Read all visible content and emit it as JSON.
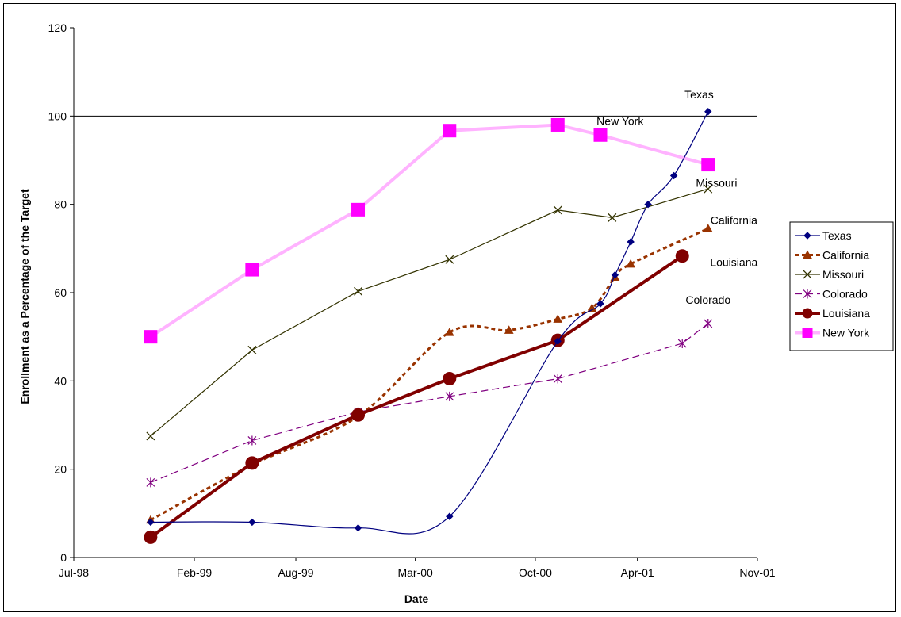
{
  "chart_data": {
    "type": "line",
    "title": "",
    "xlabel": "Date",
    "ylabel": "Enrollment as a Percentage of the Target",
    "xlim": [
      "1998-07-01",
      "2001-11-01"
    ],
    "ylim": [
      0,
      120
    ],
    "x_ticks": [
      {
        "date": "1998-07-01",
        "label": "Jul-98"
      },
      {
        "date": "1999-02-01",
        "label": "Feb-99"
      },
      {
        "date": "1999-08-01",
        "label": "Aug-99"
      },
      {
        "date": "2000-03-01",
        "label": "Mar-00"
      },
      {
        "date": "2000-10-01",
        "label": "Oct-00"
      },
      {
        "date": "2001-04-01",
        "label": "Apr-01"
      },
      {
        "date": "2001-11-01",
        "label": "Nov-01"
      }
    ],
    "y_ticks": [
      0,
      20,
      40,
      60,
      80,
      100,
      120
    ],
    "reference_line": {
      "y": 100,
      "color": "#000000"
    },
    "grid": false,
    "legend_position": "right",
    "series": [
      {
        "name": "Texas",
        "color": "#000080",
        "marker": "diamond",
        "line": "solid-thin-smooth",
        "points": [
          {
            "x": "1998-11-15",
            "y": 8
          },
          {
            "x": "1999-05-15",
            "y": 8
          },
          {
            "x": "1999-11-20",
            "y": 6.7
          },
          {
            "x": "2000-05-01",
            "y": 9.3
          },
          {
            "x": "2000-11-10",
            "y": 49
          },
          {
            "x": "2001-01-25",
            "y": 57.5
          },
          {
            "x": "2001-02-20",
            "y": 64
          },
          {
            "x": "2001-03-20",
            "y": 71.5
          },
          {
            "x": "2001-04-20",
            "y": 80
          },
          {
            "x": "2001-06-05",
            "y": 86.5
          },
          {
            "x": "2001-08-05",
            "y": 101
          }
        ]
      },
      {
        "name": "California",
        "color": "#993300",
        "marker": "triangle",
        "line": "dashed-smooth",
        "points": [
          {
            "x": "1998-11-15",
            "y": 8.5
          },
          {
            "x": "1999-05-15",
            "y": 21
          },
          {
            "x": "1999-11-20",
            "y": 32
          },
          {
            "x": "2000-05-01",
            "y": 51
          },
          {
            "x": "2000-08-15",
            "y": 51.5
          },
          {
            "x": "2000-11-10",
            "y": 54
          },
          {
            "x": "2001-01-10",
            "y": 56.5
          },
          {
            "x": "2001-02-20",
            "y": 63.5
          },
          {
            "x": "2001-03-20",
            "y": 66.5
          },
          {
            "x": "2001-08-05",
            "y": 74.5
          }
        ]
      },
      {
        "name": "Missouri",
        "color": "#333300",
        "marker": "x",
        "line": "solid-thin",
        "points": [
          {
            "x": "1998-11-15",
            "y": 27.5
          },
          {
            "x": "1999-05-15",
            "y": 47
          },
          {
            "x": "1999-11-20",
            "y": 60.3
          },
          {
            "x": "2000-05-01",
            "y": 67.5
          },
          {
            "x": "2000-11-10",
            "y": 78.7
          },
          {
            "x": "2001-02-15",
            "y": 77
          },
          {
            "x": "2001-08-05",
            "y": 83.5
          }
        ]
      },
      {
        "name": "Colorado",
        "color": "#800080",
        "marker": "star",
        "line": "dashed-long",
        "points": [
          {
            "x": "1998-11-15",
            "y": 17
          },
          {
            "x": "1999-05-15",
            "y": 26.5
          },
          {
            "x": "1999-11-20",
            "y": 33
          },
          {
            "x": "2000-05-01",
            "y": 36.5
          },
          {
            "x": "2000-11-10",
            "y": 40.5
          },
          {
            "x": "2001-06-20",
            "y": 48.5
          },
          {
            "x": "2001-08-05",
            "y": 53
          }
        ]
      },
      {
        "name": "Louisiana",
        "color": "#800000",
        "marker": "circle",
        "line": "solid-thick",
        "points": [
          {
            "x": "1998-11-15",
            "y": 4.6
          },
          {
            "x": "1999-05-15",
            "y": 21.4
          },
          {
            "x": "1999-11-20",
            "y": 32.3
          },
          {
            "x": "2000-05-01",
            "y": 40.5
          },
          {
            "x": "2000-11-10",
            "y": 49.2
          },
          {
            "x": "2001-06-20",
            "y": 68.3
          }
        ]
      },
      {
        "name": "New York",
        "color": "#FF00FF",
        "line_color": "#FFB3FF",
        "marker": "square",
        "line": "solid-thick",
        "points": [
          {
            "x": "1998-11-15",
            "y": 50
          },
          {
            "x": "1999-05-15",
            "y": 65.2
          },
          {
            "x": "1999-11-20",
            "y": 78.8
          },
          {
            "x": "2000-05-01",
            "y": 96.7
          },
          {
            "x": "2000-11-10",
            "y": 98
          },
          {
            "x": "2001-01-25",
            "y": 95.7
          },
          {
            "x": "2001-08-05",
            "y": 89
          }
        ]
      }
    ],
    "annotations": [
      {
        "text": "Texas",
        "x": "2001-07-20",
        "y": 104
      },
      {
        "text": "New York",
        "x": "2001-03-01",
        "y": 98
      },
      {
        "text": "Missouri",
        "x": "2001-08-20",
        "y": 84
      },
      {
        "text": "California",
        "x": "2001-09-20",
        "y": 75.5
      },
      {
        "text": "Louisiana",
        "x": "2001-09-20",
        "y": 66
      },
      {
        "text": "Colorado",
        "x": "2001-08-05",
        "y": 57.5
      }
    ]
  }
}
